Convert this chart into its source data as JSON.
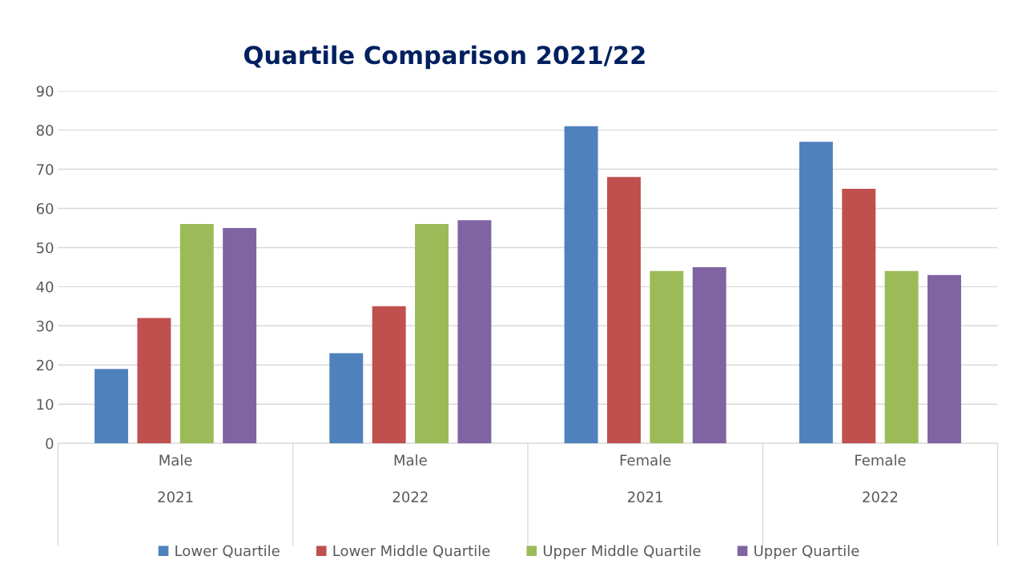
{
  "chart_data": {
    "type": "bar",
    "title": "Quartile Comparison 2021/22",
    "categories": [
      "Male\n\n2021",
      "Male\n\n2022",
      "Female\n\n2021",
      "Female\n\n2022"
    ],
    "series": [
      {
        "name": "Lower Quartile",
        "color": "#4f81bd",
        "values": [
          19,
          23,
          81,
          77
        ]
      },
      {
        "name": "Lower Middle Quartile",
        "color": "#c0504d",
        "values": [
          32,
          35,
          68,
          65
        ]
      },
      {
        "name": "Upper Middle Quartile",
        "color": "#9bbb59",
        "values": [
          56,
          56,
          44,
          44
        ]
      },
      {
        "name": "Upper Quartile",
        "color": "#8064a2",
        "values": [
          55,
          57,
          45,
          43
        ]
      }
    ],
    "ylim": [
      0,
      90
    ],
    "yticks": [
      0,
      10,
      20,
      30,
      40,
      50,
      60,
      70,
      80,
      90
    ],
    "grid": "y",
    "legend": "bottom"
  }
}
